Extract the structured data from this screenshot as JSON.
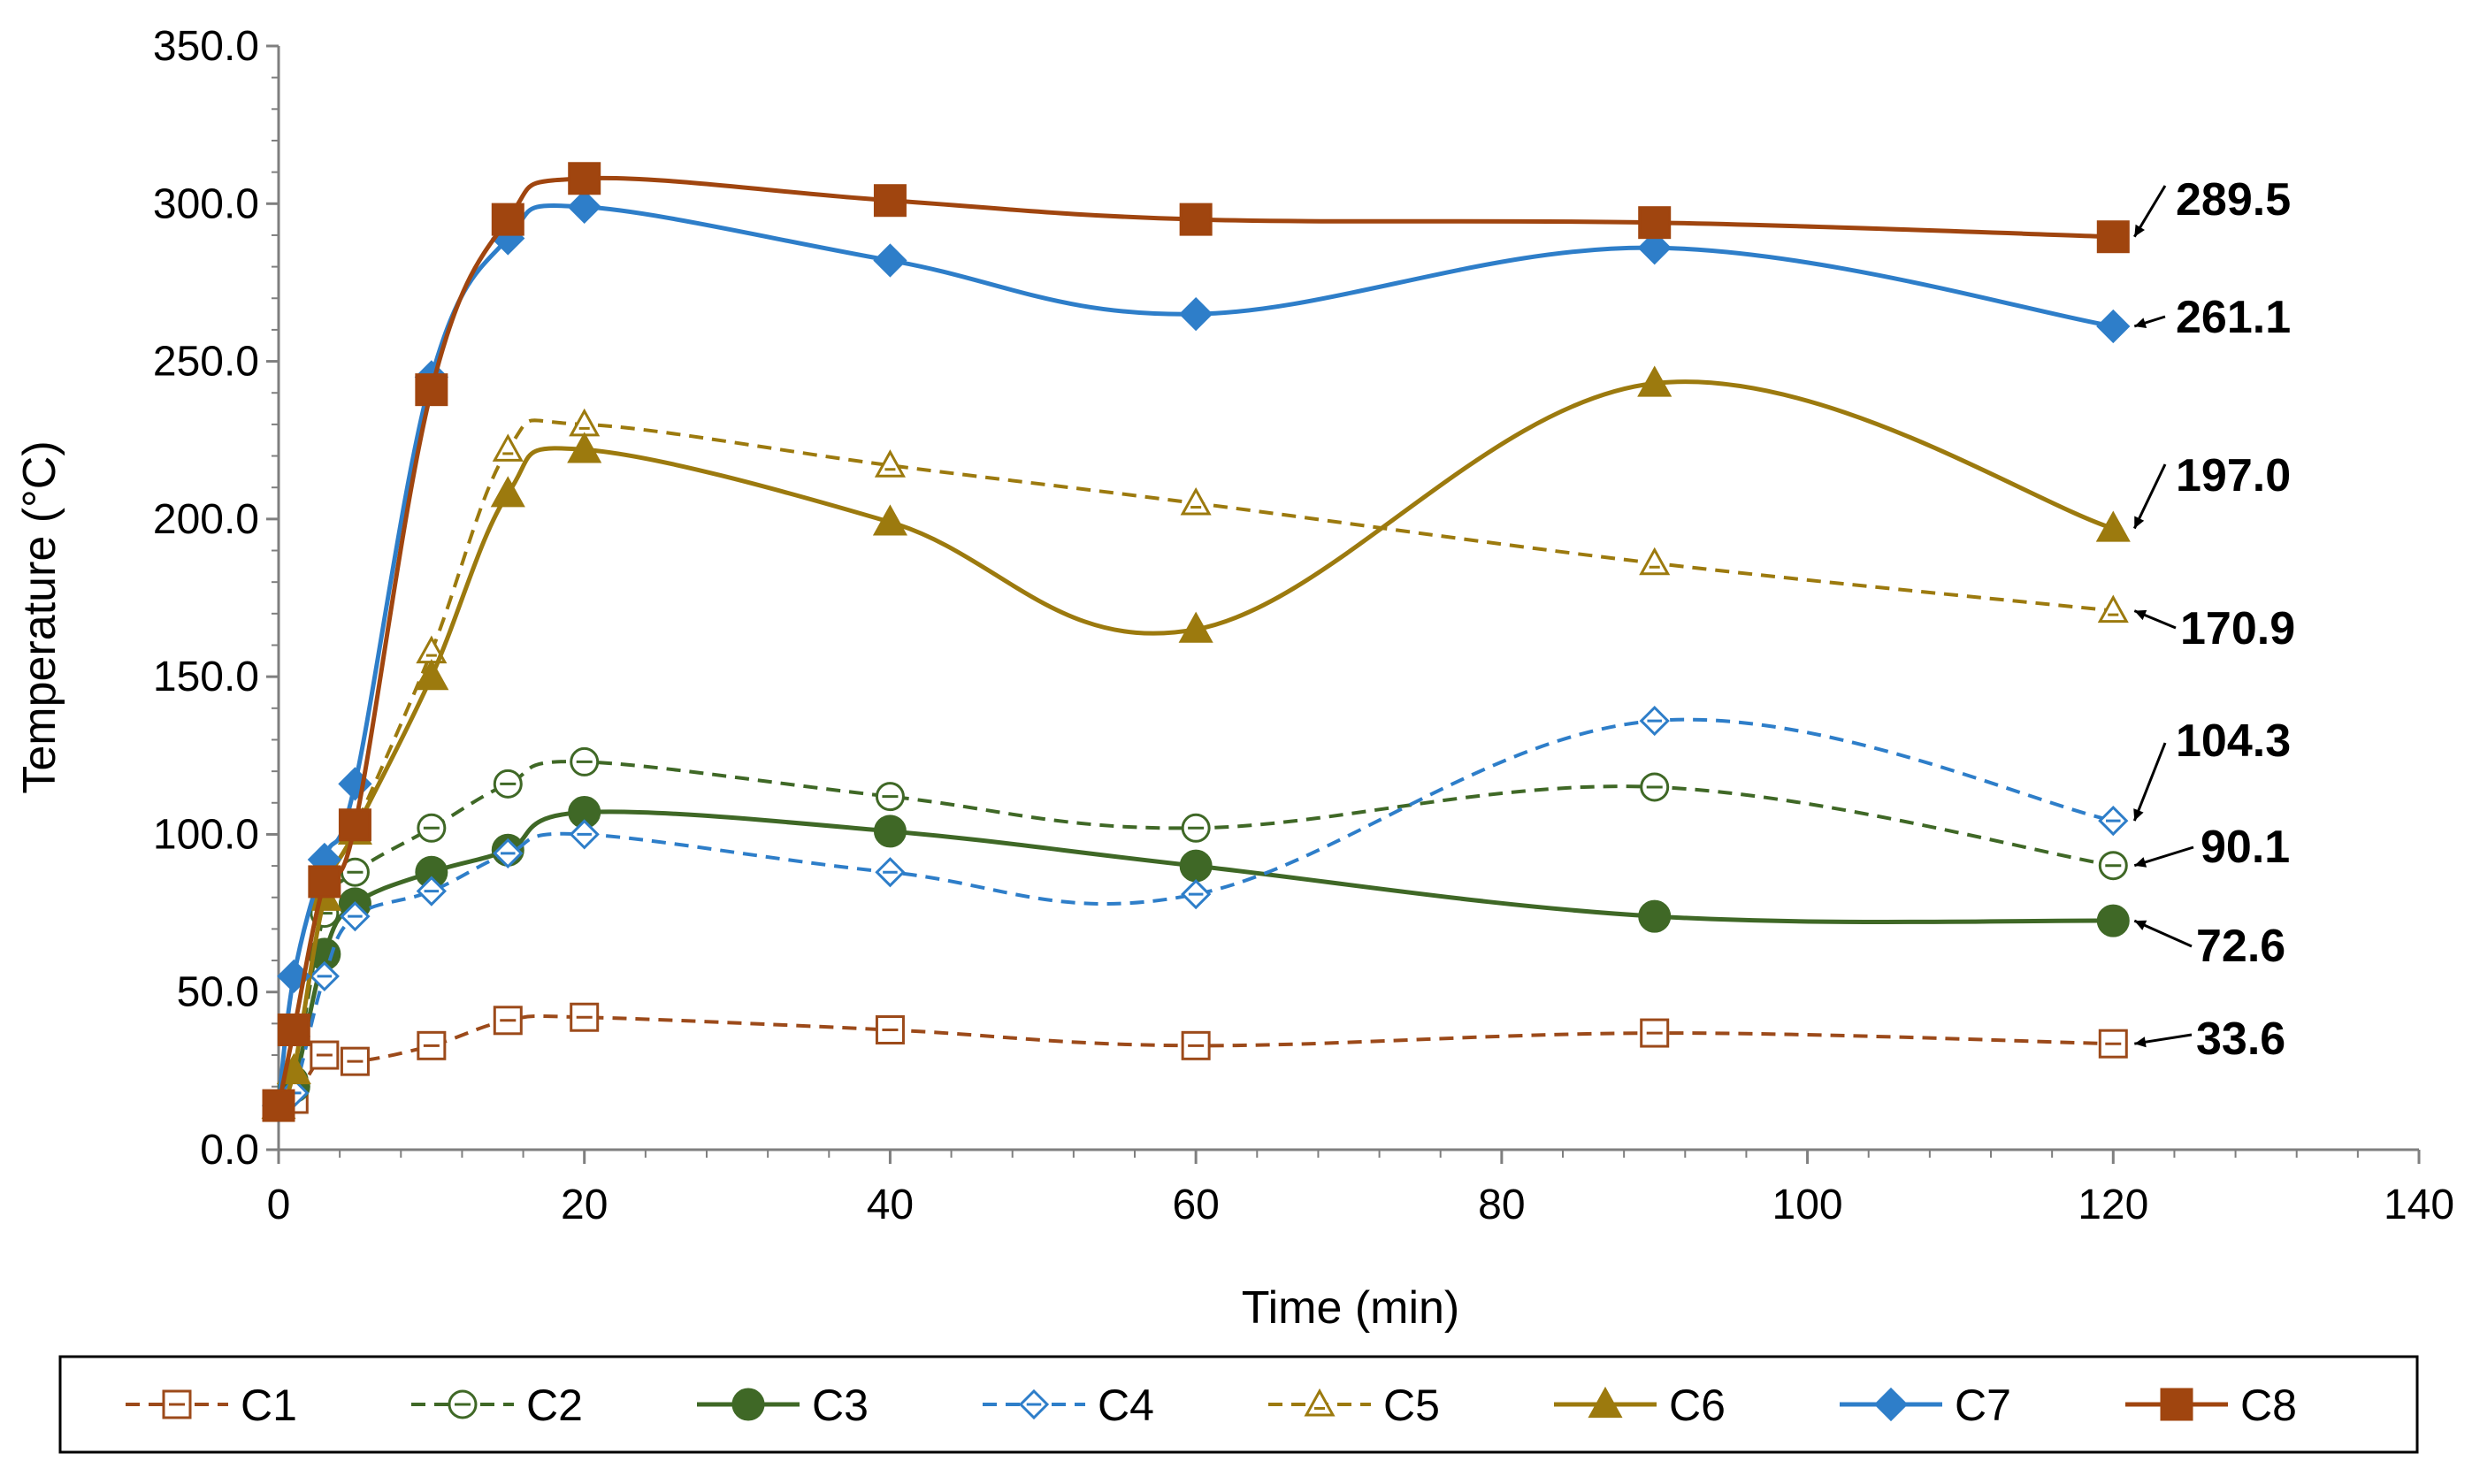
{
  "chart_data": {
    "type": "line",
    "xlabel": "Time (min)",
    "ylabel": "Temperature (°C)",
    "xlim": [
      0,
      140
    ],
    "ylim": [
      0,
      350
    ],
    "xticks": [
      0,
      20,
      40,
      60,
      80,
      100,
      120,
      140
    ],
    "yticks": [
      0,
      50,
      100,
      150,
      200,
      250,
      300,
      350
    ],
    "x_tick_labels": [
      "0",
      "20",
      "40",
      "60",
      "80",
      "100",
      "120",
      "140"
    ],
    "y_tick_labels": [
      "0.0",
      "50.0",
      "100.0",
      "150.0",
      "200.0",
      "250.0",
      "300.0",
      "350.0"
    ],
    "legend_position": "bottom",
    "series": [
      {
        "name": "C1",
        "color": "#9c4a1a",
        "dashed": true,
        "marker": "square",
        "filled": false,
        "x": [
          0,
          1,
          3,
          5,
          10,
          15,
          20,
          40,
          60,
          90,
          120
        ],
        "y": [
          14,
          16,
          30,
          28,
          33,
          41,
          42,
          38,
          33,
          37,
          33.6
        ]
      },
      {
        "name": "C2",
        "color": "#3f6826",
        "dashed": true,
        "marker": "circle",
        "filled": false,
        "x": [
          0,
          1,
          3,
          5,
          10,
          15,
          20,
          40,
          60,
          90,
          120
        ],
        "y": [
          14,
          22,
          75,
          88,
          102,
          116,
          123,
          112,
          102,
          115,
          90.1
        ]
      },
      {
        "name": "C3",
        "color": "#3f6826",
        "dashed": false,
        "marker": "circle",
        "filled": true,
        "x": [
          0,
          1,
          3,
          5,
          10,
          15,
          20,
          40,
          60,
          90,
          120
        ],
        "y": [
          14,
          20,
          62,
          78,
          88,
          95,
          107,
          101,
          90,
          74,
          72.6
        ]
      },
      {
        "name": "C4",
        "color": "#2e7ec9",
        "dashed": true,
        "marker": "diamond",
        "filled": false,
        "x": [
          0,
          1,
          3,
          5,
          10,
          15,
          20,
          40,
          60,
          90,
          120
        ],
        "y": [
          14,
          18,
          55,
          74,
          82,
          94,
          100,
          88,
          81,
          136,
          104.3
        ]
      },
      {
        "name": "C5",
        "color": "#9c7a0e",
        "dashed": true,
        "marker": "triangle",
        "filled": false,
        "x": [
          0,
          1,
          3,
          5,
          10,
          15,
          20,
          40,
          60,
          90,
          120
        ],
        "y": [
          14,
          25,
          80,
          102,
          158,
          222,
          230,
          217,
          205,
          186,
          170.9
        ]
      },
      {
        "name": "C6",
        "color": "#9c7a0e",
        "dashed": false,
        "marker": "triangle",
        "filled": true,
        "x": [
          0,
          1,
          3,
          5,
          10,
          15,
          20,
          40,
          60,
          90,
          120
        ],
        "y": [
          14,
          25,
          80,
          101,
          150,
          208,
          222,
          199,
          165,
          243,
          197.0
        ]
      },
      {
        "name": "C7",
        "color": "#2e7ec9",
        "dashed": false,
        "marker": "diamond",
        "filled": true,
        "x": [
          0,
          1,
          3,
          5,
          10,
          15,
          20,
          40,
          60,
          90,
          120
        ],
        "y": [
          14,
          55,
          92,
          116,
          245,
          289,
          299,
          282,
          265,
          286,
          261.1
        ]
      },
      {
        "name": "C8",
        "color": "#a0450f",
        "dashed": false,
        "marker": "square",
        "filled": true,
        "x": [
          0,
          1,
          3,
          5,
          10,
          15,
          20,
          40,
          60,
          90,
          120
        ],
        "y": [
          14,
          38,
          85,
          103,
          241,
          295,
          308,
          301,
          295,
          294,
          289.5
        ]
      }
    ],
    "annotations": [
      {
        "text": "289.5",
        "series": "C8",
        "x": 120,
        "y": 289.5
      },
      {
        "text": "261.1",
        "series": "C7",
        "x": 120,
        "y": 261.1
      },
      {
        "text": "197.0",
        "series": "C6",
        "x": 120,
        "y": 197.0
      },
      {
        "text": "170.9",
        "series": "C5",
        "x": 120,
        "y": 170.9
      },
      {
        "text": "104.3",
        "series": "C4",
        "x": 120,
        "y": 104.3
      },
      {
        "text": "90.1",
        "series": "C2",
        "x": 120,
        "y": 90.1
      },
      {
        "text": "72.6",
        "series": "C3",
        "x": 120,
        "y": 72.6
      },
      {
        "text": "33.6",
        "series": "C1",
        "x": 120,
        "y": 33.6
      }
    ]
  }
}
